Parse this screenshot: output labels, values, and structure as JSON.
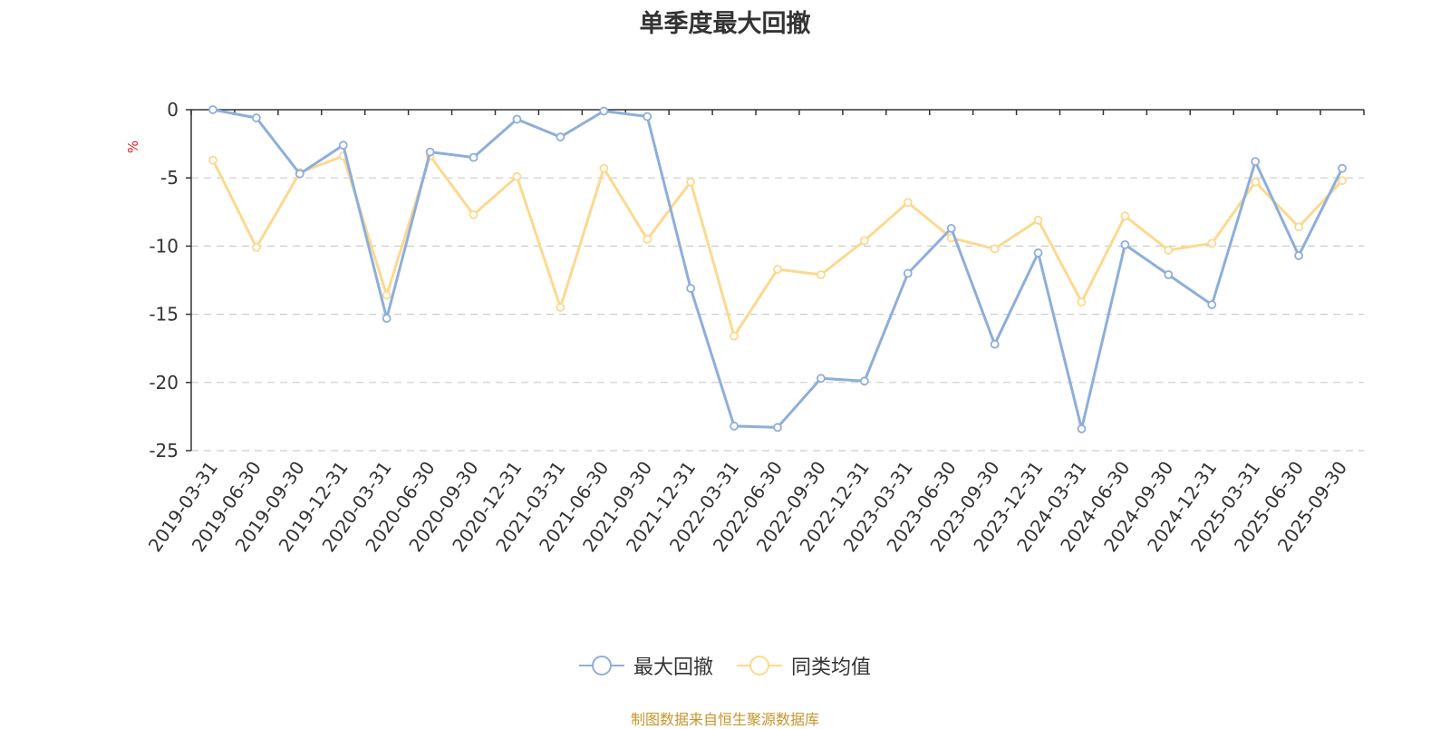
{
  "title": "单季度最大回撤",
  "source_note": "制图数据来自恒生聚源数据库",
  "colors": {
    "series_a": "#8eaedb",
    "series_b": "#fcd990",
    "unit_label": "#e02020",
    "axis": "#333333",
    "grid": "#cccccc",
    "source": "#c8962c"
  },
  "chart_data": {
    "type": "line",
    "ylabel": "%",
    "ylim": [
      -25,
      0
    ],
    "yticks": [
      0,
      -5,
      -10,
      -15,
      -20,
      -25
    ],
    "grid": "horizontal dashed",
    "legend_position": "bottom-center",
    "categories": [
      "2019-03-31",
      "2019-06-30",
      "2019-09-30",
      "2019-12-31",
      "2020-03-31",
      "2020-06-30",
      "2020-09-30",
      "2020-12-31",
      "2021-03-31",
      "2021-06-30",
      "2021-09-30",
      "2021-12-31",
      "2022-03-31",
      "2022-06-30",
      "2022-09-30",
      "2022-12-31",
      "2023-03-31",
      "2023-06-30",
      "2023-09-30",
      "2023-12-31",
      "2024-03-31",
      "2024-06-30",
      "2024-09-30",
      "2024-12-31",
      "2025-03-31",
      "2025-06-30",
      "2025-09-30"
    ],
    "series": [
      {
        "name": "最大回撤",
        "values": [
          0.0,
          -0.6,
          -4.7,
          -2.6,
          -15.3,
          -3.1,
          -3.5,
          -0.7,
          -2.0,
          -0.1,
          -0.5,
          -13.1,
          -23.2,
          -23.3,
          -19.7,
          -19.9,
          -12.0,
          -8.7,
          -17.2,
          -10.5,
          -23.4,
          -9.9,
          -12.1,
          -14.3,
          -3.8,
          -10.7,
          -4.3
        ]
      },
      {
        "name": "同类均值",
        "values": [
          -3.7,
          -10.1,
          -4.6,
          -3.4,
          -13.6,
          -3.4,
          -7.7,
          -4.9,
          -14.5,
          -4.3,
          -9.5,
          -5.3,
          -16.6,
          -11.7,
          -12.1,
          -9.6,
          -6.8,
          -9.4,
          -10.2,
          -8.1,
          -14.1,
          -7.8,
          -10.3,
          -9.8,
          -5.3,
          -8.6,
          -5.2
        ]
      }
    ]
  }
}
